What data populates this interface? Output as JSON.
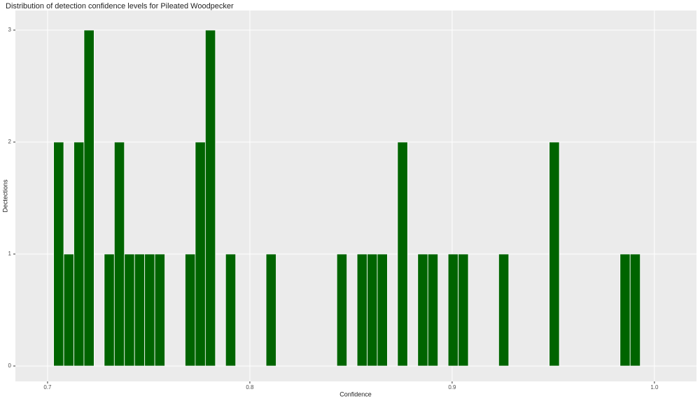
{
  "chart_data": {
    "type": "histogram",
    "title": "Distribution of detection confidence levels for Pileated Woodpecker",
    "x_label": "Confidence",
    "y_label": "Dectections",
    "bins": [
      0.703,
      0.708,
      0.713,
      0.718,
      0.723,
      0.728,
      0.733,
      0.738,
      0.743,
      0.748,
      0.753,
      0.758,
      0.763,
      0.768,
      0.773,
      0.778,
      0.783,
      0.788,
      0.793,
      0.798,
      0.803,
      0.808,
      0.813,
      0.818,
      0.823,
      0.828,
      0.833,
      0.838,
      0.843,
      0.848,
      0.853,
      0.858,
      0.863,
      0.868,
      0.873,
      0.878,
      0.883,
      0.888,
      0.893,
      0.898,
      0.903,
      0.908,
      0.913,
      0.918,
      0.923,
      0.928,
      0.933,
      0.938,
      0.943,
      0.948,
      0.953,
      0.958,
      0.963,
      0.968,
      0.973,
      0.978,
      0.983,
      0.988,
      0.993
    ],
    "values": [
      2,
      1,
      2,
      3,
      0,
      1,
      2,
      1,
      1,
      1,
      1,
      0,
      0,
      1,
      2,
      3,
      0,
      1,
      0,
      0,
      0,
      1,
      0,
      0,
      0,
      0,
      0,
      0,
      1,
      0,
      1,
      1,
      1,
      0,
      2,
      0,
      1,
      1,
      0,
      1,
      1,
      0,
      0,
      0,
      1,
      0,
      0,
      0,
      0,
      2,
      0,
      0,
      0,
      0,
      0,
      0,
      1,
      1
    ],
    "color": "#006400",
    "xlim": [
      0.6841,
      1.0208
    ],
    "xticks": [
      0.7,
      0.8,
      0.9,
      {
        "value": 1,
        "label": "1.0"
      }
    ],
    "ylim": [
      -0.1375,
      3.175
    ],
    "yticks": [
      0,
      1,
      2,
      3
    ],
    "grid": true
  }
}
